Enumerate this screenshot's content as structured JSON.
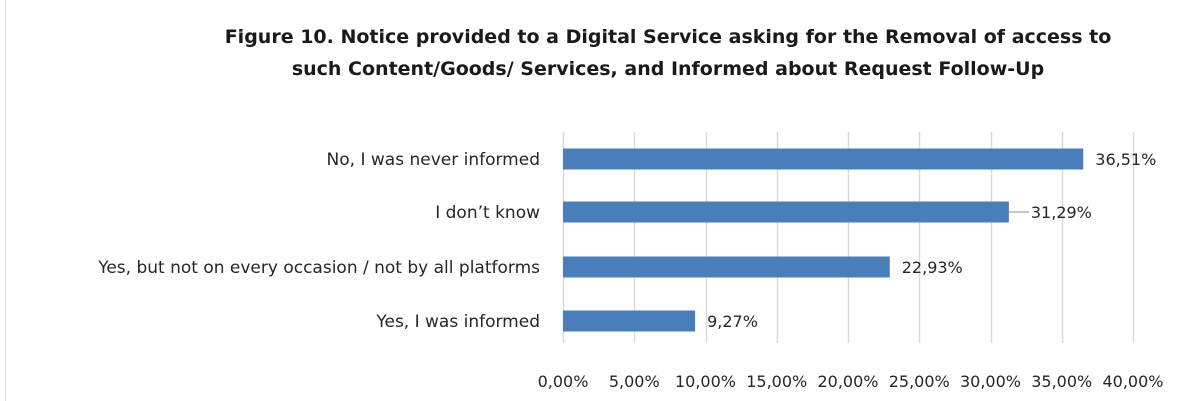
{
  "chart_data": {
    "type": "bar",
    "orientation": "horizontal",
    "title_lines": [
      "Figure 10. Notice provided  to a Digital Service asking for the Removal  of access to",
      "such Content/Goods/  Services, and Informed about  Request Follow-Up"
    ],
    "categories": [
      "No, I was never informed",
      "I don’t know",
      "Yes, but not on every occasion / not by all  platforms",
      "Yes, I was informed"
    ],
    "values": [
      36.51,
      31.29,
      22.93,
      9.27
    ],
    "data_labels": [
      "36,51%",
      "31,29%",
      "22,93%",
      "9,27%"
    ],
    "xlim": [
      0,
      40
    ],
    "xticks": [
      0,
      5,
      10,
      15,
      20,
      25,
      30,
      35,
      40
    ],
    "xtick_labels": [
      "0,00%",
      "5,00%",
      "10,00%",
      "15,00%",
      "20,00%",
      "25,00%",
      "30,00%",
      "35,00%",
      "40,00%"
    ],
    "xlabel": "",
    "ylabel": "",
    "grid": true,
    "legend": false,
    "colors": {
      "bar": "#4a7ebb",
      "grid": "#d9d9d9",
      "leader": "#a6a6a6",
      "border": "#d9d9d9"
    }
  }
}
